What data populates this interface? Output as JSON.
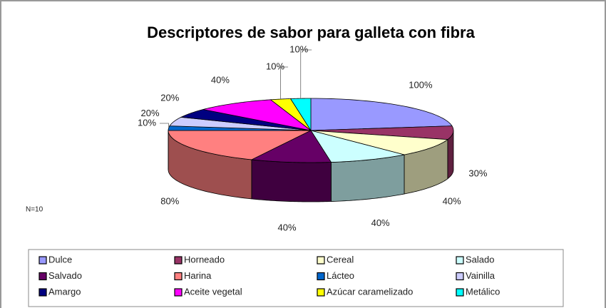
{
  "chart_data": {
    "type": "pie3d",
    "title": "Descriptores de sabor para galleta con fibra",
    "note": "N=10",
    "categories": [
      "Dulce",
      "Horneado",
      "Cereal",
      "Salado",
      "Salvado",
      "Harina",
      "Lácteo",
      "Vainilla",
      "Amargo",
      "Aceite vegetal",
      "Azúcar caramelizado",
      "Metálico"
    ],
    "values": [
      100,
      30,
      40,
      40,
      40,
      80,
      10,
      20,
      20,
      40,
      10,
      10
    ],
    "value_labels": [
      "100%",
      "30%",
      "40%",
      "40%",
      "40%",
      "80%",
      "10%",
      "20%",
      "20%",
      "40%",
      "10%",
      "10%"
    ],
    "colors": [
      "#9999ff",
      "#993366",
      "#ffffcc",
      "#ccffff",
      "#660066",
      "#ff8080",
      "#0066cc",
      "#ccccff",
      "#000080",
      "#ff00ff",
      "#ffff00",
      "#00ffff"
    ]
  }
}
